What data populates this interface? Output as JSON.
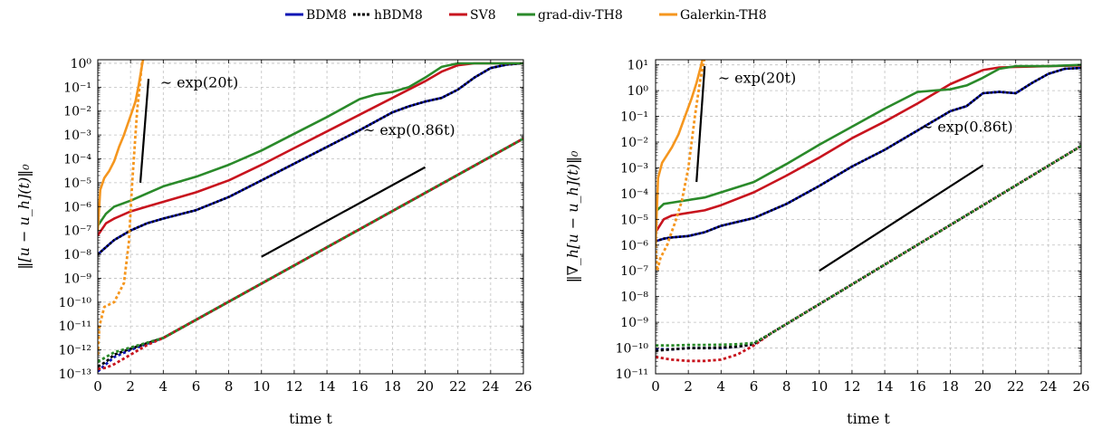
{
  "colors": {
    "BDM8": "#0b14b4",
    "hBDM8": "#000000",
    "SV8": "#c8141e",
    "grad-div-TH8": "#2a8a2a",
    "Galerkin-TH8": "#f5961e",
    "grid": "#bfbfbf"
  },
  "legend": [
    {
      "name": "BDM8",
      "style": "solid",
      "color": "#0b14b4"
    },
    {
      "name": "hBDM8",
      "style": "dotted",
      "color": "#000000"
    },
    {
      "name": "SV8",
      "style": "solid",
      "color": "#c8141e"
    },
    {
      "name": "grad-div-TH8",
      "style": "solid",
      "color": "#2a8a2a"
    },
    {
      "name": "Galerkin-TH8",
      "style": "solid",
      "color": "#f5961e"
    }
  ],
  "chart_data": [
    {
      "type": "line",
      "ylabel": "‖[u − u_h](t)‖₀",
      "xlabel": "time t",
      "xlim": [
        0,
        26
      ],
      "xticks": [
        0,
        2,
        4,
        6,
        8,
        10,
        12,
        14,
        16,
        18,
        20,
        22,
        24,
        26
      ],
      "ylim_log10": [
        -13,
        0.15
      ],
      "yticks_log10": [
        -13,
        -12,
        -11,
        -10,
        -9,
        -8,
        -7,
        -6,
        -5,
        -4,
        -3,
        -2,
        -1,
        0
      ],
      "ytick_labels": [
        "10⁻¹³",
        "10⁻¹²",
        "10⁻¹¹",
        "10⁻¹⁰",
        "10⁻⁹",
        "10⁻⁸",
        "10⁻⁷",
        "10⁻⁶",
        "10⁻⁵",
        "10⁻⁴",
        "10⁻³",
        "10⁻²",
        "10⁻¹",
        "10⁰"
      ],
      "y_scale": "log",
      "grid": true,
      "series": [
        {
          "name": "BDM8",
          "style": "solid",
          "x": [
            0,
            0.5,
            1,
            2,
            3,
            4,
            6,
            8,
            10,
            12,
            14,
            16,
            18,
            19,
            20,
            21,
            22,
            23,
            24,
            25,
            26
          ],
          "y_log10": [
            -8,
            -7.7,
            -7.4,
            -7.0,
            -6.7,
            -6.5,
            -6.15,
            -5.6,
            -4.9,
            -4.2,
            -3.5,
            -2.8,
            -2.05,
            -1.8,
            -1.6,
            -1.45,
            -1.1,
            -0.6,
            -0.2,
            -0.05,
            0
          ]
        },
        {
          "name": "hBDM8",
          "style": "dashed",
          "x": [
            0,
            0.5,
            1,
            2,
            3,
            4,
            6,
            8,
            10,
            12,
            14,
            16,
            18,
            19,
            20,
            21,
            22,
            23,
            24,
            25,
            26
          ],
          "y_log10": [
            -8,
            -7.7,
            -7.4,
            -7.0,
            -6.7,
            -6.5,
            -6.15,
            -5.6,
            -4.9,
            -4.2,
            -3.5,
            -2.8,
            -2.05,
            -1.8,
            -1.6,
            -1.45,
            -1.1,
            -0.6,
            -0.2,
            -0.05,
            0
          ]
        },
        {
          "name": "SV8",
          "style": "solid",
          "x": [
            0,
            0.5,
            1,
            2,
            3,
            4,
            6,
            8,
            10,
            12,
            14,
            16,
            18,
            20,
            21,
            22,
            23,
            24,
            26
          ],
          "y_log10": [
            -7.2,
            -6.7,
            -6.5,
            -6.2,
            -6.0,
            -5.8,
            -5.4,
            -4.9,
            -4.25,
            -3.55,
            -2.85,
            -2.15,
            -1.45,
            -0.75,
            -0.35,
            -0.08,
            0,
            0,
            0
          ]
        },
        {
          "name": "grad-div-TH8",
          "style": "solid",
          "x": [
            0,
            0.5,
            1,
            2,
            3,
            4,
            6,
            8,
            10,
            12,
            14,
            16,
            17,
            18,
            19,
            20,
            21,
            22,
            24,
            26
          ],
          "y_log10": [
            -6.8,
            -6.3,
            -6.0,
            -5.75,
            -5.45,
            -5.15,
            -4.75,
            -4.25,
            -3.65,
            -2.95,
            -2.25,
            -1.5,
            -1.3,
            -1.2,
            -1.0,
            -0.6,
            -0.15,
            0,
            0,
            0
          ]
        },
        {
          "name": "Galerkin-TH8",
          "style": "solid",
          "x": [
            0,
            0.15,
            0.4,
            0.7,
            1.0,
            1.3,
            1.6,
            2.0,
            2.3,
            2.5,
            2.75,
            2.9
          ],
          "y_log10": [
            -7.0,
            -5.3,
            -4.8,
            -4.5,
            -4.1,
            -3.5,
            -3.0,
            -2.2,
            -1.6,
            -0.9,
            0.1,
            0.5
          ]
        },
        {
          "name": "BDM8 (dotted)",
          "style": "dotted",
          "color": "#0b14b4",
          "x": [
            0,
            0.5,
            1,
            2,
            4,
            26
          ],
          "y_log10": [
            -12.9,
            -12.6,
            -12.3,
            -12.0,
            -11.5,
            -3.15
          ]
        },
        {
          "name": "hBDM8 (dotted)",
          "style": "dotted",
          "color": "#000000",
          "x": [
            0,
            0.5,
            1,
            2,
            4,
            26
          ],
          "y_log10": [
            -12.7,
            -12.5,
            -12.2,
            -11.95,
            -11.5,
            -3.15
          ]
        },
        {
          "name": "SV8 (dotted)",
          "style": "dotted",
          "color": "#c8141e",
          "x": [
            0,
            0.5,
            1,
            2,
            3,
            4,
            26
          ],
          "y_log10": [
            -12.8,
            -12.75,
            -12.6,
            -12.2,
            -11.8,
            -11.5,
            -3.15
          ]
        },
        {
          "name": "grad-div-TH8 (dotted)",
          "style": "dotted",
          "color": "#2a8a2a",
          "x": [
            0,
            0.5,
            1,
            2,
            4,
            26
          ],
          "y_log10": [
            -12.5,
            -12.3,
            -12.1,
            -11.9,
            -11.5,
            -3.15
          ]
        },
        {
          "name": "Galerkin-TH8 (dotted)",
          "style": "dotted",
          "color": "#f5961e",
          "x": [
            0,
            0.1,
            0.4,
            1.0,
            1.6,
            1.9,
            2.1,
            2.4,
            2.7,
            3.0
          ],
          "y_log10": [
            -12.2,
            -11.0,
            -10.2,
            -10.0,
            -9.2,
            -7.5,
            -5.0,
            -2.0,
            0.0,
            1.0
          ]
        }
      ],
      "reference_lines": [
        {
          "label": "∼ exp(20t)",
          "x": [
            2.6,
            3.1
          ],
          "y_log10": [
            -5.0,
            -0.65
          ],
          "label_x": 3.8,
          "label_y_log10": -1.0
        },
        {
          "label": "∼ exp(0.86t)",
          "x": [
            10,
            20
          ],
          "y_log10": [
            -8.1,
            -4.35
          ],
          "label_x": 16.2,
          "label_y_log10": -3.0
        }
      ]
    },
    {
      "type": "line",
      "ylabel": "‖∇_h[u − u_h](t)‖₀",
      "xlabel": "time t",
      "xlim": [
        0,
        26
      ],
      "xticks": [
        0,
        2,
        4,
        6,
        8,
        10,
        12,
        14,
        16,
        18,
        20,
        22,
        24,
        26
      ],
      "ylim_log10": [
        -11,
        1.2
      ],
      "yticks_log10": [
        -11,
        -10,
        -9,
        -8,
        -7,
        -6,
        -5,
        -4,
        -3,
        -2,
        -1,
        0,
        1
      ],
      "ytick_labels": [
        "10⁻¹¹",
        "10⁻¹⁰",
        "10⁻⁹",
        "10⁻⁸",
        "10⁻⁷",
        "10⁻⁶",
        "10⁻⁵",
        "10⁻⁴",
        "10⁻³",
        "10⁻²",
        "10⁻¹",
        "10⁰",
        "10¹"
      ],
      "y_scale": "log",
      "grid": true,
      "series": [
        {
          "name": "BDM8",
          "style": "solid",
          "x": [
            0,
            0.5,
            1,
            2,
            3,
            4,
            5,
            6,
            8,
            10,
            12,
            14,
            16,
            18,
            19,
            20,
            21,
            22,
            23,
            24,
            25,
            26
          ],
          "y_log10": [
            -5.85,
            -5.75,
            -5.7,
            -5.65,
            -5.5,
            -5.25,
            -5.1,
            -4.95,
            -4.4,
            -3.7,
            -2.95,
            -2.3,
            -1.55,
            -0.8,
            -0.6,
            -0.1,
            -0.05,
            -0.1,
            0.3,
            0.65,
            0.85,
            0.88
          ]
        },
        {
          "name": "hBDM8",
          "style": "dashed",
          "x": [
            0,
            0.5,
            1,
            2,
            3,
            4,
            5,
            6,
            8,
            10,
            12,
            14,
            16,
            18,
            19,
            20,
            21,
            22,
            23,
            24,
            25,
            26
          ],
          "y_log10": [
            -5.85,
            -5.75,
            -5.7,
            -5.65,
            -5.5,
            -5.25,
            -5.1,
            -4.95,
            -4.4,
            -3.7,
            -2.95,
            -2.3,
            -1.55,
            -0.8,
            -0.6,
            -0.1,
            -0.05,
            -0.1,
            0.3,
            0.65,
            0.85,
            0.88
          ]
        },
        {
          "name": "SV8",
          "style": "solid",
          "x": [
            0,
            0.5,
            1,
            2,
            3,
            4,
            6,
            8,
            10,
            12,
            14,
            16,
            18,
            20,
            21,
            22,
            24,
            26
          ],
          "y_log10": [
            -5.5,
            -5.0,
            -4.85,
            -4.75,
            -4.65,
            -4.45,
            -3.95,
            -3.3,
            -2.6,
            -1.85,
            -1.2,
            -0.5,
            0.25,
            0.8,
            0.9,
            0.92,
            0.95,
            0.98
          ]
        },
        {
          "name": "grad-div-TH8",
          "style": "solid",
          "x": [
            0,
            0.5,
            1,
            2,
            3,
            4,
            6,
            8,
            10,
            12,
            14,
            16,
            17,
            18,
            19,
            20,
            21,
            22,
            24,
            26
          ],
          "y_log10": [
            -4.7,
            -4.4,
            -4.35,
            -4.25,
            -4.15,
            -3.95,
            -3.55,
            -2.85,
            -2.1,
            -1.4,
            -0.7,
            -0.05,
            0.0,
            0.05,
            0.2,
            0.5,
            0.85,
            0.95,
            0.95,
            1.0
          ]
        },
        {
          "name": "Galerkin-TH8",
          "style": "solid",
          "x": [
            0,
            0.15,
            0.4,
            0.7,
            1.0,
            1.4,
            1.8,
            2.2,
            2.5,
            2.75,
            2.9
          ],
          "y_log10": [
            -6.0,
            -3.4,
            -2.8,
            -2.5,
            -2.2,
            -1.7,
            -1.0,
            -0.3,
            0.3,
            0.9,
            1.3
          ]
        },
        {
          "name": "BDM8 (dotted)",
          "style": "dotted",
          "color": "#0b14b4",
          "x": [
            0,
            1,
            2,
            3,
            4,
            5,
            6,
            7,
            26
          ],
          "y_log10": [
            -10.05,
            -10.05,
            -10.0,
            -10.0,
            -10.0,
            -9.95,
            -9.85,
            -9.45,
            -2.15
          ]
        },
        {
          "name": "hBDM8 (dotted)",
          "style": "dotted",
          "color": "#000000",
          "x": [
            0,
            1,
            2,
            3,
            4,
            5,
            6,
            7,
            26
          ],
          "y_log10": [
            -10.1,
            -10.05,
            -10.0,
            -10.0,
            -9.98,
            -9.95,
            -9.85,
            -9.45,
            -2.15
          ]
        },
        {
          "name": "SV8 (dotted)",
          "style": "dotted",
          "color": "#c8141e",
          "x": [
            0,
            1,
            2,
            3,
            4,
            5,
            6,
            7,
            26
          ],
          "y_log10": [
            -10.35,
            -10.45,
            -10.5,
            -10.5,
            -10.45,
            -10.25,
            -9.9,
            -9.45,
            -2.15
          ]
        },
        {
          "name": "grad-div-TH8 (dotted)",
          "style": "dotted",
          "color": "#2a8a2a",
          "x": [
            0,
            1,
            2,
            3,
            4,
            5,
            6,
            7,
            26
          ],
          "y_log10": [
            -9.9,
            -9.9,
            -9.88,
            -9.88,
            -9.87,
            -9.85,
            -9.8,
            -9.45,
            -2.15
          ]
        },
        {
          "name": "Galerkin-TH8 (dotted)",
          "style": "dotted",
          "color": "#f5961e",
          "x": [
            0,
            0.1,
            0.3,
            0.7,
            1.2,
            1.6,
            2.0,
            2.4,
            2.7,
            3.0
          ],
          "y_log10": [
            -6.0,
            -7.0,
            -6.5,
            -6.0,
            -5.1,
            -4.3,
            -3.0,
            -1.0,
            0.3,
            1.3
          ]
        }
      ],
      "reference_lines": [
        {
          "label": "∼ exp(20t)",
          "x": [
            2.5,
            3.0
          ],
          "y_log10": [
            -3.55,
            0.95
          ],
          "label_x": 3.8,
          "label_y_log10": 0.3
        },
        {
          "label": "∼ exp(0.86t)",
          "x": [
            10,
            20
          ],
          "y_log10": [
            -7.0,
            -2.9
          ],
          "label_x": 16.2,
          "label_y_log10": -1.6
        }
      ]
    }
  ]
}
